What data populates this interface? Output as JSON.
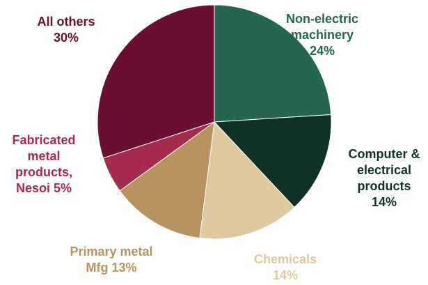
{
  "chart_data": {
    "type": "pie",
    "start_angle_deg": 0,
    "direction": "clockwise",
    "slices": [
      {
        "label_lines": [
          "Non-electric",
          "machinery",
          "24%"
        ],
        "value": 24,
        "color": "#276452"
      },
      {
        "label_lines": [
          "Computer &",
          "electrical",
          "products",
          "14%"
        ],
        "value": 14,
        "color": "#0f3127"
      },
      {
        "label_lines": [
          "Chemicals",
          "14%"
        ],
        "value": 14,
        "color": "#dfc9a1"
      },
      {
        "label_lines": [
          "Primary metal",
          "Mfg 13%"
        ],
        "value": 13,
        "color": "#b89261"
      },
      {
        "label_lines": [
          "Fabricated",
          "metal",
          "products,",
          "Nesoi 5%"
        ],
        "value": 5,
        "color": "#a42a4e"
      },
      {
        "label_lines": [
          "All others",
          "30%"
        ],
        "value": 30,
        "color": "#6a0f31"
      }
    ]
  }
}
